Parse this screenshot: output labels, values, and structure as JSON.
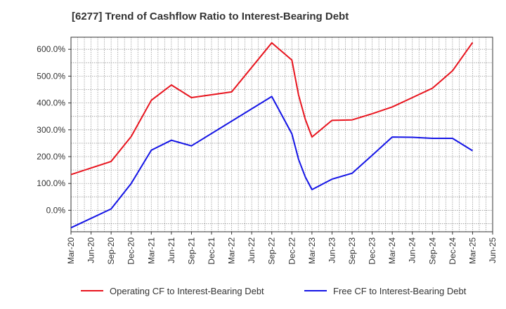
{
  "chart_data": {
    "type": "line",
    "title": "[6277]  Trend of Cashflow Ratio to Interest-Bearing Debt",
    "xlabel": "",
    "ylabel": "",
    "x_ticks": [
      "Mar-20",
      "Jun-20",
      "Sep-20",
      "Dec-20",
      "Mar-21",
      "Jun-21",
      "Sep-21",
      "Dec-21",
      "Mar-22",
      "Jun-22",
      "Sep-22",
      "Dec-22",
      "Mar-23",
      "Jun-23",
      "Sep-23",
      "Dec-23",
      "Mar-24",
      "Jun-24",
      "Sep-24",
      "Dec-24",
      "Mar-25",
      "Jun-25"
    ],
    "y_ticks": [
      "0.0%",
      "100.0%",
      "200.0%",
      "300.0%",
      "400.0%",
      "500.0%",
      "600.0%"
    ],
    "ylim": [
      -80,
      645
    ],
    "grid": true,
    "legend": "bottom",
    "series": [
      {
        "name": "Operating CF to Interest-Bearing Debt",
        "color": "#e8141e",
        "points": [
          [
            "Mar-20",
            133
          ],
          [
            "Sep-20",
            182
          ],
          [
            "Dec-20",
            275
          ],
          [
            "Mar-21",
            410
          ],
          [
            "Jun-21",
            467
          ],
          [
            "Sep-21",
            420
          ],
          [
            "Mar-22",
            441
          ],
          [
            "Sep-22",
            624
          ],
          [
            "Dec-22",
            560
          ],
          [
            "Jan-23",
            430
          ],
          [
            "Feb-23",
            340
          ],
          [
            "Mar-23",
            273
          ],
          [
            "Jun-23",
            335
          ],
          [
            "Sep-23",
            337
          ],
          [
            "Dec-23",
            360
          ],
          [
            "Mar-24",
            385
          ],
          [
            "Jun-24",
            420
          ],
          [
            "Sep-24",
            455
          ],
          [
            "Dec-24",
            520
          ],
          [
            "Mar-25",
            625
          ]
        ]
      },
      {
        "name": "Free CF to Interest-Bearing Debt",
        "color": "#1414e6",
        "points": [
          [
            "Mar-20",
            -65
          ],
          [
            "Sep-20",
            5
          ],
          [
            "Dec-20",
            100
          ],
          [
            "Mar-21",
            224
          ],
          [
            "Jun-21",
            261
          ],
          [
            "Sep-21",
            240
          ],
          [
            "Sep-22",
            424
          ],
          [
            "Dec-22",
            285
          ],
          [
            "Jan-23",
            190
          ],
          [
            "Feb-23",
            125
          ],
          [
            "Mar-23",
            77
          ],
          [
            "Jun-23",
            116
          ],
          [
            "Sep-23",
            138
          ],
          [
            "Dec-23",
            205
          ],
          [
            "Mar-24",
            273
          ],
          [
            "Jun-24",
            272
          ],
          [
            "Sep-24",
            268
          ],
          [
            "Dec-24",
            268
          ],
          [
            "Mar-25",
            222
          ]
        ]
      }
    ]
  }
}
